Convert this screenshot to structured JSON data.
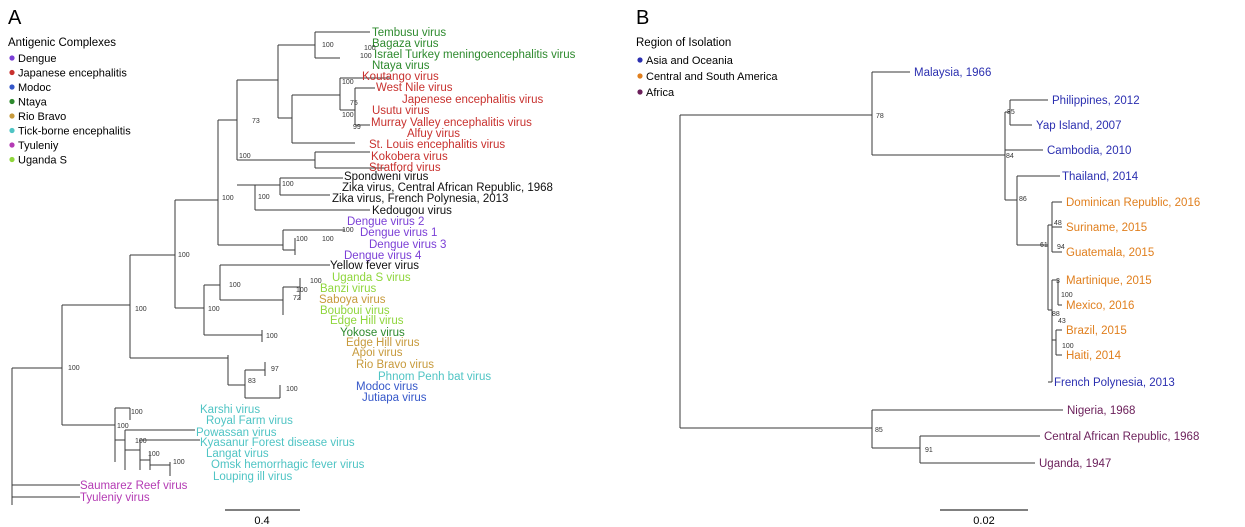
{
  "panelA": {
    "letter": "A",
    "legend": {
      "title": "Antigenic Complexes",
      "items": [
        {
          "label": "Dengue",
          "color": "#7b3fd6"
        },
        {
          "label": "Japanese encephalitis",
          "color": "#c8312e"
        },
        {
          "label": "Modoc",
          "color": "#3557c9"
        },
        {
          "label": "Ntaya",
          "color": "#2e8a2e"
        },
        {
          "label": "Rio Bravo",
          "color": "#c79a3c"
        },
        {
          "label": "Tick-borne encephalitis",
          "color": "#4fc4c4"
        },
        {
          "label": "Tyuleniy",
          "color": "#b43bb4"
        },
        {
          "label": "Uganda S",
          "color": "#8fd63c"
        }
      ]
    },
    "leaves": [
      {
        "name": "Tembusu virus",
        "color": "#2e8a2e"
      },
      {
        "name": "Bagaza virus",
        "color": "#2e8a2e"
      },
      {
        "name": "Israel Turkey meningoencephalitis virus",
        "color": "#2e8a2e"
      },
      {
        "name": "Ntaya virus",
        "color": "#2e8a2e"
      },
      {
        "name": "Koutango virus",
        "color": "#c8312e"
      },
      {
        "name": "West Nile virus",
        "color": "#c8312e"
      },
      {
        "name": "Japenese encephalitis virus",
        "color": "#c8312e"
      },
      {
        "name": "Usutu virus",
        "color": "#c8312e"
      },
      {
        "name": "Murray Valley encephalitis virus",
        "color": "#c8312e"
      },
      {
        "name": "Alfuy virus",
        "color": "#c8312e"
      },
      {
        "name": "St. Louis encephalitis virus",
        "color": "#c8312e"
      },
      {
        "name": "Kokobera virus",
        "color": "#c8312e"
      },
      {
        "name": "Stratford virus",
        "color": "#c8312e"
      },
      {
        "name": "Spondweni virus",
        "color": "#111111"
      },
      {
        "name": "Zika virus, Central African Republic, 1968",
        "color": "#111111"
      },
      {
        "name": "Zika virus, French Polynesia, 2013",
        "color": "#111111"
      },
      {
        "name": "Kedougou virus",
        "color": "#111111"
      },
      {
        "name": "Dengue virus 2",
        "color": "#7b3fd6"
      },
      {
        "name": "Dengue virus 1",
        "color": "#7b3fd6"
      },
      {
        "name": "Dengue virus 3",
        "color": "#7b3fd6"
      },
      {
        "name": "Dengue virus 4",
        "color": "#7b3fd6"
      },
      {
        "name": "Yellow fever virus",
        "color": "#111111"
      },
      {
        "name": "Uganda S virus",
        "color": "#8fd63c"
      },
      {
        "name": "Banzi virus",
        "color": "#8fd63c"
      },
      {
        "name": "Saboya virus",
        "color": "#c79a3c"
      },
      {
        "name": "Bouboui virus",
        "color": "#8fd63c"
      },
      {
        "name": "Edge Hill virus",
        "color": "#8fd63c"
      },
      {
        "name": "Yokose virus",
        "color": "#2e8a2e"
      },
      {
        "name": "Edge Hill virus",
        "color": "#c79a3c"
      },
      {
        "name": "Apoi virus",
        "color": "#c79a3c"
      },
      {
        "name": "Rio Bravo virus",
        "color": "#c79a3c"
      },
      {
        "name": "Phnom Penh bat virus",
        "color": "#4fc4c4"
      },
      {
        "name": "Modoc virus",
        "color": "#3557c9"
      },
      {
        "name": "Jutiapa virus",
        "color": "#3557c9"
      },
      {
        "name": "Karshi virus",
        "color": "#4fc4c4"
      },
      {
        "name": "Royal Farm virus",
        "color": "#4fc4c4"
      },
      {
        "name": "Powassan virus",
        "color": "#4fc4c4"
      },
      {
        "name": "Kyasanur Forest disease virus",
        "color": "#4fc4c4"
      },
      {
        "name": "Langat virus",
        "color": "#4fc4c4"
      },
      {
        "name": "Omsk hemorrhagic fever virus",
        "color": "#4fc4c4"
      },
      {
        "name": "Louping ill virus",
        "color": "#4fc4c4"
      },
      {
        "name": "Saumarez Reef virus",
        "color": "#b43bb4"
      },
      {
        "name": "Tyuleniy virus",
        "color": "#b43bb4"
      }
    ],
    "support_values": [
      "100",
      "100",
      "100",
      "100",
      "75",
      "100",
      "99",
      "73",
      "100",
      "100",
      "100",
      "100",
      "100",
      "100",
      "100",
      "100",
      "100",
      "100",
      "100",
      "72",
      "100",
      "100",
      "100",
      "100",
      "97",
      "83",
      "100",
      "100",
      "100",
      "100",
      "100",
      "100"
    ],
    "scale_label": "0.4"
  },
  "panelB": {
    "letter": "B",
    "legend": {
      "title": "Region of Isolation",
      "items": [
        {
          "label": "Asia and Oceania",
          "color": "#2b2fb0"
        },
        {
          "label": "Central and South America",
          "color": "#e07f1e"
        },
        {
          "label": "Africa",
          "color": "#6b1f5a"
        }
      ]
    },
    "leaves": [
      {
        "name": "Malaysia, 1966",
        "color": "#2b2fb0"
      },
      {
        "name": "Philippines, 2012",
        "color": "#2b2fb0"
      },
      {
        "name": "Yap Island, 2007",
        "color": "#2b2fb0"
      },
      {
        "name": "Cambodia, 2010",
        "color": "#2b2fb0"
      },
      {
        "name": "Thailand, 2014",
        "color": "#2b2fb0"
      },
      {
        "name": "Dominican Republic, 2016",
        "color": "#e07f1e"
      },
      {
        "name": "Suriname, 2015",
        "color": "#e07f1e"
      },
      {
        "name": "Guatemala, 2015",
        "color": "#e07f1e"
      },
      {
        "name": "Martinique, 2015",
        "color": "#e07f1e"
      },
      {
        "name": "Mexico, 2016",
        "color": "#e07f1e"
      },
      {
        "name": "Brazil, 2015",
        "color": "#e07f1e"
      },
      {
        "name": "Haiti, 2014",
        "color": "#e07f1e"
      },
      {
        "name": "French Polynesia, 2013",
        "color": "#2b2fb0"
      },
      {
        "name": "Nigeria, 1968",
        "color": "#6b1f5a"
      },
      {
        "name": "Central African Republic, 1968",
        "color": "#6b1f5a"
      },
      {
        "name": "Uganda, 1947",
        "color": "#6b1f5a"
      }
    ],
    "support_values": [
      "78",
      "85",
      "84",
      "86",
      "48",
      "94",
      "61",
      "3",
      "100",
      "88",
      "43",
      "100",
      "85",
      "91"
    ],
    "scale_label": "0.02"
  }
}
